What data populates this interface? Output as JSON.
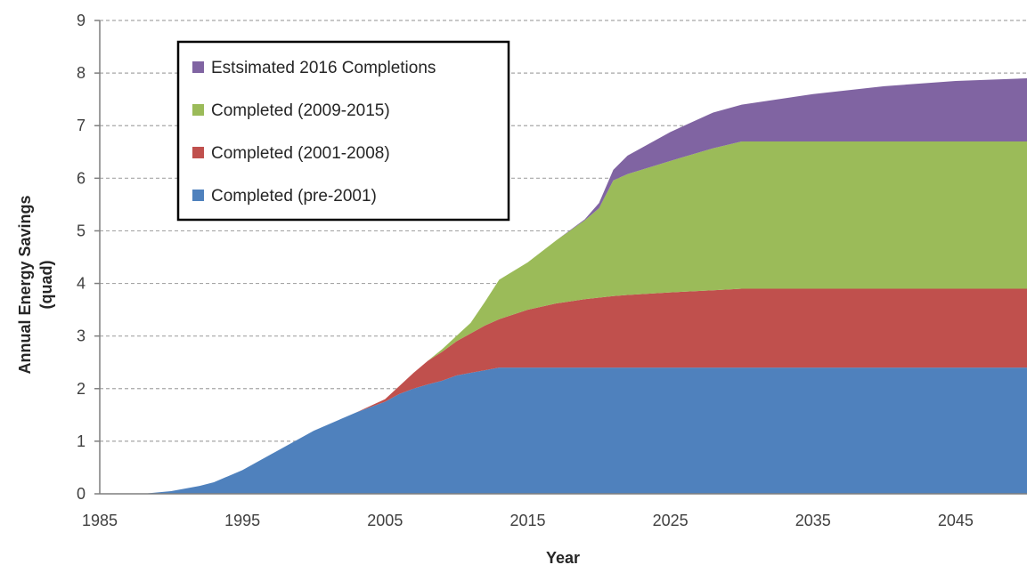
{
  "chart_data": {
    "type": "area",
    "stacked": true,
    "title": "",
    "xlabel": "Year",
    "ylabel": "Annual Energy Savings (quad)",
    "ylabel_lines": [
      "Annual Energy Savings",
      "(quad)"
    ],
    "xlim": [
      1985,
      2050
    ],
    "ylim": [
      0,
      9
    ],
    "xticks": [
      1985,
      1995,
      2005,
      2015,
      2025,
      2035,
      2045
    ],
    "yticks": [
      0,
      1,
      2,
      3,
      4,
      5,
      6,
      7,
      8,
      9
    ],
    "grid": "horizontal dashed",
    "legend_position": "top-left",
    "x": [
      1985,
      1988,
      1990,
      1992,
      1993,
      1995,
      1997,
      2000,
      2003,
      2005,
      2006,
      2007,
      2008,
      2009,
      2010,
      2011,
      2012,
      2013,
      2015,
      2017,
      2019,
      2020,
      2021,
      2022,
      2025,
      2028,
      2030,
      2035,
      2040,
      2045,
      2050
    ],
    "series": [
      {
        "name": "Completed (pre-2001)",
        "color": "#4f81bd",
        "values": [
          0,
          0,
          0.05,
          0.15,
          0.22,
          0.45,
          0.75,
          1.2,
          1.55,
          1.75,
          1.9,
          2.0,
          2.08,
          2.15,
          2.25,
          2.3,
          2.35,
          2.4,
          2.4,
          2.4,
          2.4,
          2.4,
          2.4,
          2.4,
          2.4,
          2.4,
          2.4,
          2.4,
          2.4,
          2.4,
          2.4
        ]
      },
      {
        "name": "Completed (2001-2008)",
        "color": "#c0504d",
        "values": [
          0,
          0,
          0,
          0,
          0,
          0,
          0,
          0,
          0,
          0.05,
          0.15,
          0.3,
          0.45,
          0.55,
          0.65,
          0.75,
          0.85,
          0.92,
          1.1,
          1.22,
          1.3,
          1.33,
          1.36,
          1.38,
          1.43,
          1.47,
          1.5,
          1.5,
          1.5,
          1.5,
          1.5
        ]
      },
      {
        "name": "Completed (2009-2015)",
        "color": "#9bbb59",
        "values": [
          0,
          0,
          0,
          0,
          0,
          0,
          0,
          0,
          0,
          0,
          0,
          0,
          0,
          0.05,
          0.1,
          0.2,
          0.45,
          0.75,
          0.9,
          1.2,
          1.5,
          1.7,
          2.2,
          2.3,
          2.5,
          2.7,
          2.8,
          2.8,
          2.8,
          2.8,
          2.8
        ]
      },
      {
        "name": "Estsimated 2016 Completions",
        "color": "#8064a2",
        "values": [
          0,
          0,
          0,
          0,
          0,
          0,
          0,
          0,
          0,
          0,
          0,
          0,
          0,
          0,
          0,
          0,
          0,
          0,
          0,
          0,
          0.02,
          0.1,
          0.2,
          0.35,
          0.55,
          0.68,
          0.7,
          0.9,
          1.05,
          1.15,
          1.2
        ]
      }
    ]
  }
}
